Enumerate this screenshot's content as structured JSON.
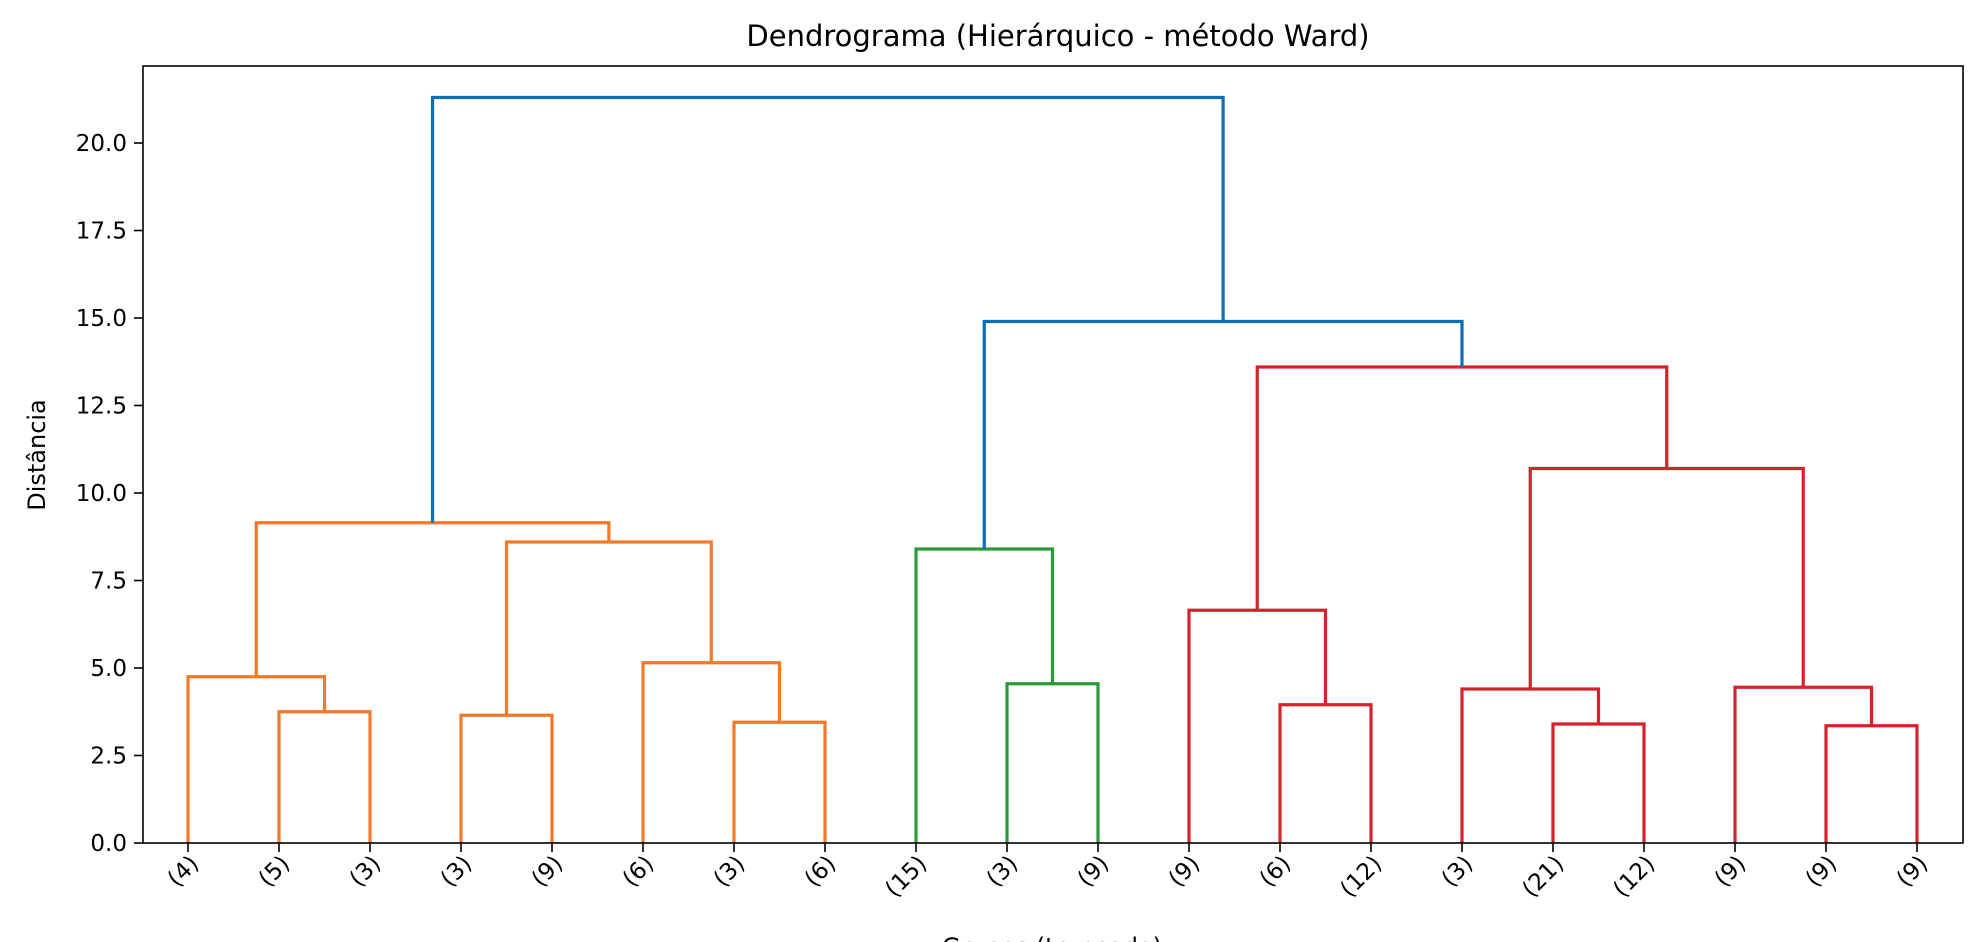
{
  "chart_data": {
    "type": "dendrogram",
    "title": "Dendrograma (Hierárquico - método Ward)",
    "xlabel": "Grupos (truncado)",
    "ylabel": "Distância",
    "ylim": [
      0,
      22.2
    ],
    "yticks": [
      0.0,
      2.5,
      5.0,
      7.5,
      10.0,
      12.5,
      15.0,
      17.5,
      20.0
    ],
    "ytick_labels": [
      "0.0",
      "2.5",
      "5.0",
      "7.5",
      "10.0",
      "12.5",
      "15.0",
      "17.5",
      "20.0"
    ],
    "leaf_labels": [
      "(4)",
      "(5)",
      "(3)",
      "(3)",
      "(9)",
      "(6)",
      "(3)",
      "(6)",
      "(15)",
      "(3)",
      "(9)",
      "(9)",
      "(6)",
      "(12)",
      "(3)",
      "(21)",
      "(12)",
      "(9)",
      "(9)",
      "(9)"
    ],
    "grid": false,
    "colors": {
      "orange": "#f07a2a",
      "green": "#2a9a35",
      "red": "#d5232c",
      "blue": "#0f6eb4"
    },
    "merges": [
      {
        "id": "n1",
        "left": 1,
        "right": 2,
        "height": 3.75,
        "color": "orange"
      },
      {
        "id": "n2",
        "left": 0,
        "right": "n1",
        "height": 4.75,
        "color": "orange"
      },
      {
        "id": "n3",
        "left": 3,
        "right": 4,
        "height": 3.65,
        "color": "orange"
      },
      {
        "id": "n4",
        "left": 6,
        "right": 7,
        "height": 3.45,
        "color": "orange"
      },
      {
        "id": "n5",
        "left": 5,
        "right": "n4",
        "height": 5.15,
        "color": "orange"
      },
      {
        "id": "n6",
        "left": "n3",
        "right": "n5",
        "height": 8.6,
        "color": "orange"
      },
      {
        "id": "n7",
        "left": "n2",
        "right": "n6",
        "height": 9.15,
        "color": "orange"
      },
      {
        "id": "n8",
        "left": 9,
        "right": 10,
        "height": 4.55,
        "color": "green"
      },
      {
        "id": "n9",
        "left": 8,
        "right": "n8",
        "height": 8.4,
        "color": "green"
      },
      {
        "id": "n10",
        "left": 12,
        "right": 13,
        "height": 3.95,
        "color": "red"
      },
      {
        "id": "n11",
        "left": 11,
        "right": "n10",
        "height": 6.65,
        "color": "red"
      },
      {
        "id": "n12",
        "left": 15,
        "right": 16,
        "height": 3.4,
        "color": "red"
      },
      {
        "id": "n13",
        "left": 14,
        "right": "n12",
        "height": 4.4,
        "color": "red"
      },
      {
        "id": "n14",
        "left": 18,
        "right": 19,
        "height": 3.35,
        "color": "red"
      },
      {
        "id": "n15",
        "left": 17,
        "right": "n14",
        "height": 4.45,
        "color": "red"
      },
      {
        "id": "n16",
        "left": "n13",
        "right": "n15",
        "height": 10.7,
        "color": "red"
      },
      {
        "id": "n17",
        "left": "n11",
        "right": "n16",
        "height": 13.6,
        "color": "red"
      },
      {
        "id": "n18",
        "left": "n9",
        "right": "n17",
        "height": 14.9,
        "color": "blue"
      },
      {
        "id": "n19",
        "left": "n7",
        "right": "n18",
        "height": 21.3,
        "color": "blue"
      }
    ]
  }
}
